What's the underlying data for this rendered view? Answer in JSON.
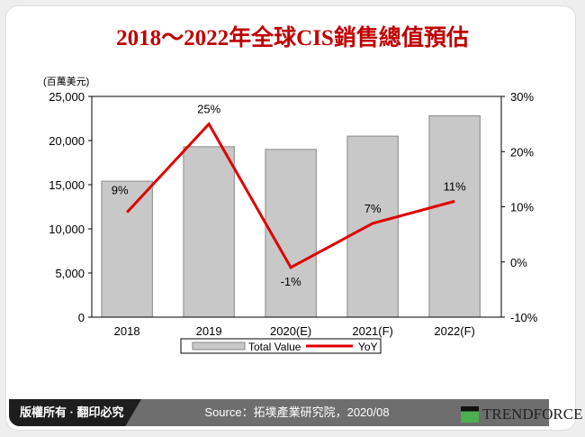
{
  "title": "2018～2022年全球CIS銷售總值預估",
  "footer": {
    "copyright": "版權所有 · 翻印必究",
    "source": "Source：拓墣產業研究院，2020/08",
    "brand": "TRENDFORCE"
  },
  "chart_data": {
    "type": "bar+line",
    "title": "2018～2022年全球CIS銷售總值預估",
    "ylabel": "(百萬美元)",
    "categories": [
      "2018",
      "2019",
      "2020(E)",
      "2021(F)",
      "2022(F)"
    ],
    "series": [
      {
        "name": "Total Value",
        "type": "bar",
        "axis": "left",
        "values": [
          15400,
          19300,
          19000,
          20500,
          22800
        ],
        "color": "#c8c8c8"
      },
      {
        "name": "YoY",
        "type": "line",
        "axis": "right",
        "values": [
          9,
          25,
          -1,
          7,
          11
        ],
        "labels": [
          "9%",
          "25%",
          "-1%",
          "7%",
          "11%"
        ],
        "color": "#e00000"
      }
    ],
    "ylim": [
      0,
      25000
    ],
    "yticks": [
      "0",
      "5,000",
      "10,000",
      "15,000",
      "20,000",
      "25,000"
    ],
    "y2lim": [
      -10,
      30
    ],
    "y2ticks": [
      "-10%",
      "0%",
      "10%",
      "20%",
      "30%"
    ],
    "legend": "bottom",
    "grid": false
  }
}
